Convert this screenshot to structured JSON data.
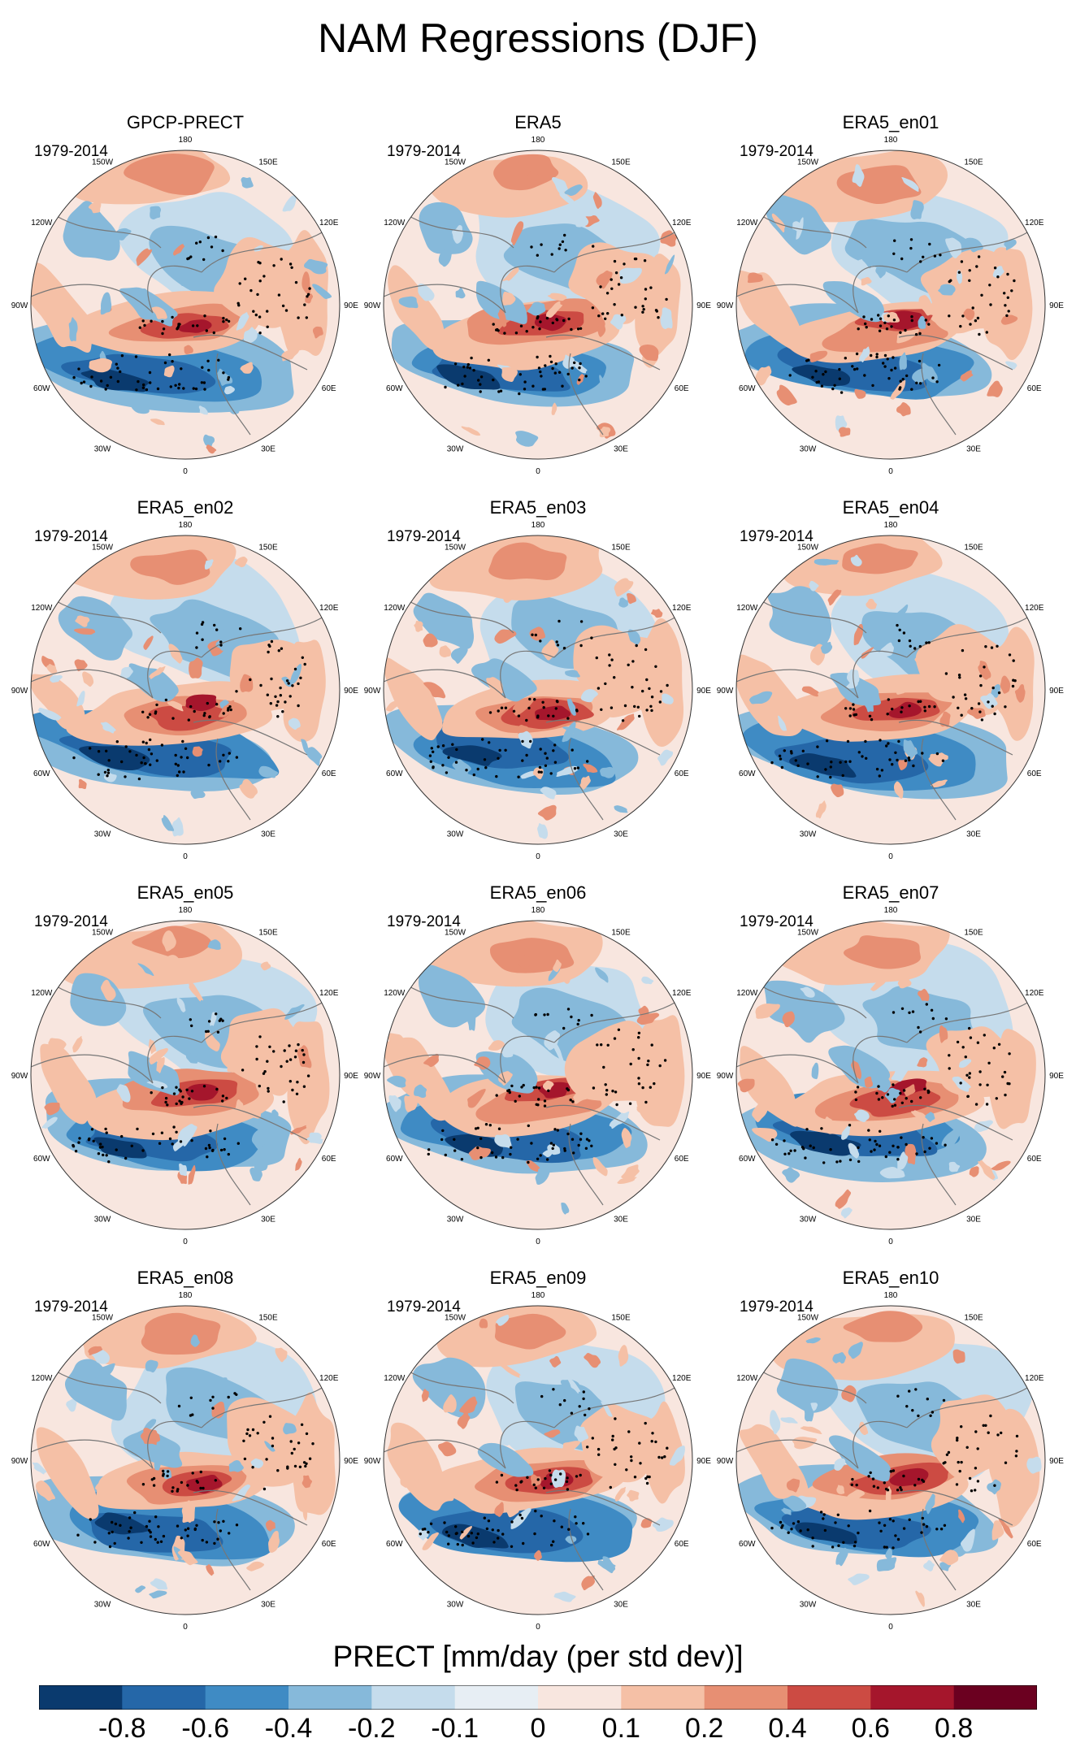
{
  "title": "NAM Regressions (DJF)",
  "panels": [
    {
      "name": "GPCP-PRECT",
      "period": "1979-2014",
      "variant": 0
    },
    {
      "name": "ERA5",
      "period": "1979-2014",
      "variant": 1
    },
    {
      "name": "ERA5_en01",
      "period": "1979-2014",
      "variant": 2
    },
    {
      "name": "ERA5_en02",
      "period": "1979-2014",
      "variant": 3
    },
    {
      "name": "ERA5_en03",
      "period": "1979-2014",
      "variant": 4
    },
    {
      "name": "ERA5_en04",
      "period": "1979-2014",
      "variant": 5
    },
    {
      "name": "ERA5_en05",
      "period": "1979-2014",
      "variant": 6
    },
    {
      "name": "ERA5_en06",
      "period": "1979-2014",
      "variant": 7
    },
    {
      "name": "ERA5_en07",
      "period": "1979-2014",
      "variant": 8
    },
    {
      "name": "ERA5_en08",
      "period": "1979-2014",
      "variant": 9
    },
    {
      "name": "ERA5_en09",
      "period": "1979-2014",
      "variant": 10
    },
    {
      "name": "ERA5_en10",
      "period": "1979-2014",
      "variant": 11
    }
  ],
  "longitude_labels": [
    "180",
    "150E",
    "120E",
    "90E",
    "60E",
    "30E",
    "0",
    "30W",
    "60W",
    "90W",
    "120W",
    "150W"
  ],
  "colorbar": {
    "title": "PRECT [mm/day (per std dev)]",
    "tick_labels": [
      "-0.8",
      "-0.6",
      "-0.4",
      "-0.2",
      "-0.1",
      "0",
      "0.1",
      "0.2",
      "0.4",
      "0.6",
      "0.8"
    ],
    "colors": [
      "#0a3a6e",
      "#2567a8",
      "#3f8bc4",
      "#86b9da",
      "#c5dcec",
      "#e7eef4",
      "#f8e6df",
      "#f5c0a6",
      "#e78f73",
      "#cc4b43",
      "#a5162c",
      "#6b0020"
    ]
  }
}
